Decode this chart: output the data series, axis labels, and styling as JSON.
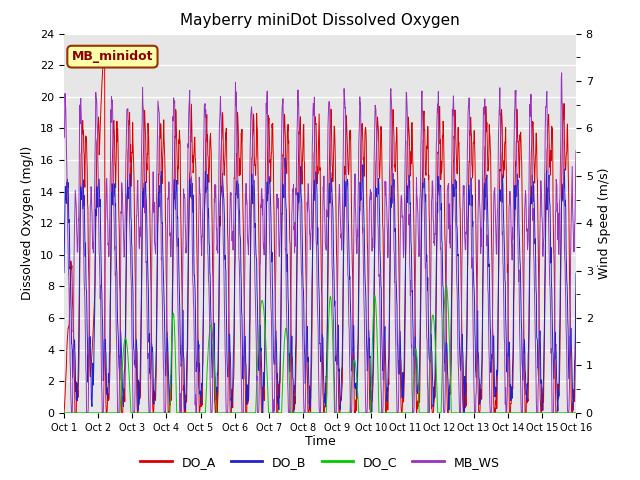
{
  "title": "Mayberry miniDot Dissolved Oxygen",
  "ylabel_left": "Dissolved Oxygen (mg/l)",
  "ylabel_right": "Wind Speed (m/s)",
  "xlabel": "Time",
  "ylim_left": [
    0,
    24
  ],
  "ylim_right": [
    0.0,
    8.0
  ],
  "yticks_left": [
    0,
    2,
    4,
    6,
    8,
    10,
    12,
    14,
    16,
    18,
    20,
    22,
    24
  ],
  "yticks_right_major": [
    0.0,
    1.0,
    2.0,
    3.0,
    4.0,
    5.0,
    6.0,
    7.0,
    8.0
  ],
  "xtick_labels": [
    "Oct 1",
    "Oct 2",
    "Oct 3",
    "Oct 4",
    "Oct 5",
    "Oct 6",
    "Oct 7",
    "Oct 8",
    "Oct 9",
    "Oct 10",
    "Oct 11",
    "Oct 12",
    "Oct 13",
    "Oct 14",
    "Oct 15",
    "Oct 16"
  ],
  "color_DO_A": "#dd0000",
  "color_DO_B": "#2222cc",
  "color_DO_C": "#00cc00",
  "color_MB_WS": "#9933bb",
  "annotation_text": "MB_minidot",
  "annotation_bg": "#ffffaa",
  "annotation_edge": "#993300",
  "bg_color": "#e6e6e6",
  "n_points": 1500
}
